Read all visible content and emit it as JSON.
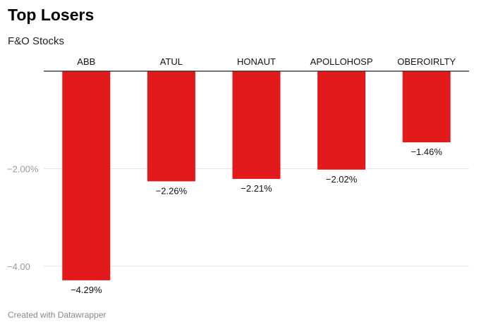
{
  "header": {
    "title": "Top Losers",
    "subtitle": "F&O Stocks"
  },
  "footer": {
    "credit": "Created with Datawrapper"
  },
  "chart_data": {
    "type": "bar",
    "title": "Top Losers",
    "subtitle": "F&O Stocks",
    "categories": [
      "ABB",
      "ATUL",
      "HONAUT",
      "APOLLOHOSP",
      "OBEROIRLTY"
    ],
    "values": [
      -4.29,
      -2.26,
      -2.21,
      -2.02,
      -1.46
    ],
    "value_labels": [
      "−4.29%",
      "−2.26%",
      "−2.21%",
      "−2.02%",
      "−1.46%"
    ],
    "y_ticks": [
      -2,
      -4
    ],
    "y_tick_labels": [
      "−2.00%",
      "−4.00"
    ],
    "ylim": [
      -4.29,
      0
    ],
    "grid": true,
    "category_labels_position": "top",
    "bar_color": "#e31a1c",
    "xlabel": "",
    "ylabel": ""
  }
}
